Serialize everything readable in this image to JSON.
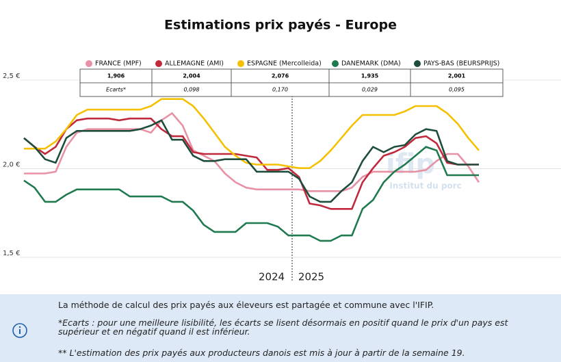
{
  "chart_data": {
    "type": "line",
    "title": "Estimations prix payés - Europe",
    "categories": [
      null,
      null,
      null,
      null,
      null,
      null,
      null,
      null,
      null,
      null,
      null,
      null,
      null,
      null,
      null,
      null,
      null,
      null,
      null,
      null,
      null,
      null,
      null,
      null,
      null,
      null,
      null,
      null,
      null,
      null,
      null,
      null,
      null,
      null,
      null,
      null,
      null,
      null,
      null,
      null,
      null,
      null,
      null,
      null
    ],
    "period_labels": [
      "2024",
      "2025"
    ],
    "ylim": [
      1.5,
      2.5
    ],
    "yticks": [
      {
        "value": 1.5,
        "label": "1,5 €"
      },
      {
        "value": 2.0,
        "label": "2,0 €"
      },
      {
        "value": 2.5,
        "label": "2,5 €"
      }
    ],
    "grid": true,
    "ecarts_label": "Ecarts*",
    "series": [
      {
        "name": "FRANCE (MPF)",
        "color": "#e891a5",
        "last": {
          "value": 1.906,
          "label": "1,906"
        },
        "values": [
          1.95,
          1.95,
          1.95,
          1.96,
          2.1,
          2.18,
          2.2,
          2.2,
          2.2,
          2.2,
          2.2,
          2.2,
          2.18,
          2.25,
          2.29,
          2.22,
          2.08,
          2.05,
          2.02,
          1.95,
          1.9,
          1.87,
          1.86,
          1.86,
          1.86,
          1.86,
          1.86,
          1.85,
          1.85,
          1.85,
          1.85,
          1.87,
          1.93,
          1.96,
          1.96,
          1.96,
          1.96,
          1.96,
          1.97,
          2.02,
          2.06,
          2.06,
          1.99,
          1.9
        ]
      },
      {
        "name": "ALLEMAGNE (AMI)",
        "color": "#c0283c",
        "last": {
          "value": 2.004,
          "label": "2,004"
        },
        "ecart": {
          "value": 0.098,
          "label": "0,098"
        },
        "values": [
          2.15,
          2.1,
          2.06,
          2.1,
          2.2,
          2.25,
          2.26,
          2.26,
          2.26,
          2.25,
          2.26,
          2.26,
          2.26,
          2.2,
          2.16,
          2.16,
          2.07,
          2.06,
          2.06,
          2.06,
          2.06,
          2.05,
          2.04,
          1.97,
          1.97,
          1.98,
          1.93,
          1.78,
          1.77,
          1.75,
          1.75,
          1.75,
          1.9,
          1.98,
          2.05,
          2.07,
          2.1,
          2.15,
          2.16,
          2.12,
          2.01,
          2.0,
          2.0,
          2.0
        ]
      },
      {
        "name": "ESPAGNE (Mercolleida)",
        "color": "#f5c000",
        "last": {
          "value": 2.076,
          "label": "2,076"
        },
        "ecart": {
          "value": 0.17,
          "label": "0,170"
        },
        "values": [
          2.09,
          2.09,
          2.09,
          2.13,
          2.2,
          2.28,
          2.31,
          2.31,
          2.31,
          2.31,
          2.31,
          2.31,
          2.33,
          2.37,
          2.37,
          2.37,
          2.33,
          2.26,
          2.18,
          2.1,
          2.05,
          2.01,
          2.0,
          2.0,
          2.0,
          1.99,
          1.98,
          1.98,
          2.02,
          2.08,
          2.15,
          2.22,
          2.28,
          2.28,
          2.28,
          2.28,
          2.3,
          2.33,
          2.33,
          2.33,
          2.29,
          2.23,
          2.15,
          2.08
        ]
      },
      {
        "name": "DANEMARK (DMA)",
        "color": "#1f7a4f",
        "last": {
          "value": 1.935,
          "label": "1,935"
        },
        "ecart": {
          "value": 0.029,
          "label": "0,029"
        },
        "values": [
          1.91,
          1.87,
          1.79,
          1.79,
          1.83,
          1.86,
          1.86,
          1.86,
          1.86,
          1.86,
          1.82,
          1.82,
          1.82,
          1.82,
          1.79,
          1.79,
          1.74,
          1.66,
          1.62,
          1.62,
          1.62,
          1.67,
          1.67,
          1.67,
          1.65,
          1.6,
          1.6,
          1.6,
          1.57,
          1.57,
          1.6,
          1.6,
          1.75,
          1.8,
          1.9,
          1.96,
          2.0,
          2.05,
          2.1,
          2.08,
          1.94,
          1.94,
          1.94,
          1.94
        ]
      },
      {
        "name": "PAYS-BAS (BEURSPRIJS)",
        "color": "#1e4d3c",
        "last": {
          "value": 2.001,
          "label": "2,001"
        },
        "ecart": {
          "value": 0.095,
          "label": "0,095"
        },
        "values": [
          2.15,
          2.1,
          2.03,
          2.01,
          2.15,
          2.19,
          2.19,
          2.19,
          2.19,
          2.19,
          2.19,
          2.2,
          2.22,
          2.25,
          2.14,
          2.14,
          2.05,
          2.02,
          2.02,
          2.03,
          2.03,
          2.03,
          1.96,
          1.96,
          1.96,
          1.96,
          1.92,
          1.82,
          1.79,
          1.79,
          1.85,
          1.9,
          2.02,
          2.1,
          2.07,
          2.1,
          2.11,
          2.17,
          2.2,
          2.19,
          2.02,
          2.0,
          2.0,
          2.0
        ]
      }
    ],
    "watermark": [
      "ifip",
      "Institut du porc"
    ],
    "notes": [
      "La méthode de calcul des prix payés aux éleveurs est partagée et commune avec l'IFIP.",
      "*Ecarts : pour une meilleure lisibilité, les écarts se lisent désormais en positif quand le prix d'un pays est supérieur et en négatif quand il est inférieur.",
      "** L'estimation des prix payés aux producteurs danois est mis à jour à partir de la semaine 19."
    ]
  }
}
